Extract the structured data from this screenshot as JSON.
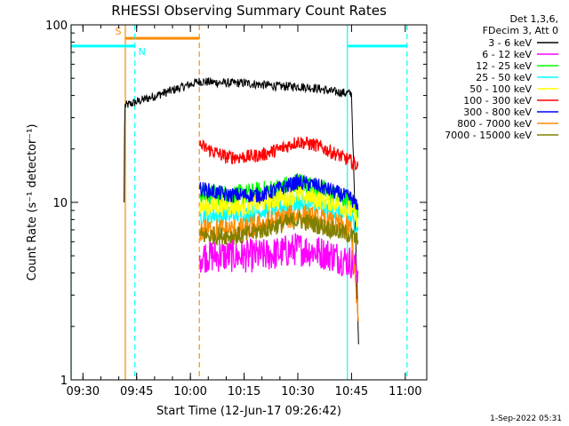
{
  "chart_data": {
    "type": "line",
    "title": "RHESSI Observing Summary Count Rates",
    "xlabel": "Start Time (12-Jun-17 09:26:42)",
    "ylabel": "Count Rate (s⁻¹ detector⁻¹)",
    "x_range": [
      "09:26:42",
      "11:06:00"
    ],
    "ylim": [
      1,
      100
    ],
    "yscale": "log",
    "x_ticks": [
      "09:30",
      "09:45",
      "10:00",
      "10:15",
      "10:30",
      "10:45",
      "11:00"
    ],
    "y_ticks": [
      "1",
      "10",
      "100"
    ],
    "legend_header": [
      "Det 1,3,6,",
      "FDecim 3, Att 0"
    ],
    "legend_position": "top-right, outside plot",
    "series": [
      {
        "name": "3 - 6 keV",
        "color": "#000000",
        "x": [
          "09:41:30",
          "09:41:40",
          "10:02:30",
          "10:10",
          "10:15",
          "10:20",
          "10:25",
          "10:30",
          "10:35",
          "10:40",
          "10:45",
          "10:47:00"
        ],
        "values": [
          10,
          35,
          48,
          47,
          47,
          46,
          45,
          45,
          44,
          42,
          41,
          1.5
        ]
      },
      {
        "name": "6 - 12 keV",
        "color": "#ff00ff",
        "x": [
          "10:02:30",
          "10:10",
          "10:15",
          "10:20",
          "10:25",
          "10:30",
          "10:35",
          "10:40",
          "10:45",
          "10:47:00"
        ],
        "values": [
          5,
          5,
          5,
          5,
          5.2,
          5.5,
          5.3,
          5,
          4.6,
          4
        ]
      },
      {
        "name": "12 - 25 keV",
        "color": "#00ff00",
        "x": [
          "10:02:30",
          "10:10",
          "10:15",
          "10:20",
          "10:25",
          "10:30",
          "10:35",
          "10:40",
          "10:45",
          "10:47:00"
        ],
        "values": [
          11,
          11,
          11,
          11.5,
          12,
          13,
          12,
          11,
          10,
          8
        ]
      },
      {
        "name": "25 - 50 keV",
        "color": "#00ffff",
        "x": [
          "10:02:30",
          "10:10",
          "10:15",
          "10:20",
          "10:25",
          "10:30",
          "10:35",
          "10:40",
          "10:45",
          "10:47:00"
        ],
        "values": [
          8.5,
          8.5,
          8.5,
          9,
          9.5,
          10,
          9.5,
          9,
          8,
          7
        ]
      },
      {
        "name": "50 - 100 keV",
        "color": "#ffff00",
        "x": [
          "10:02:30",
          "10:10",
          "10:15",
          "10:20",
          "10:25",
          "10:30",
          "10:35",
          "10:40",
          "10:45",
          "10:47:00"
        ],
        "values": [
          9.5,
          9.5,
          9.5,
          10,
          10.5,
          11,
          10.5,
          10,
          9,
          8
        ]
      },
      {
        "name": "100 - 300 keV",
        "color": "#ff0000",
        "x": [
          "10:02:30",
          "10:10",
          "10:15",
          "10:20",
          "10:25",
          "10:30",
          "10:35",
          "10:40",
          "10:45",
          "10:47:00"
        ],
        "values": [
          21,
          18,
          18,
          18.5,
          20,
          22,
          21,
          19,
          17,
          16
        ]
      },
      {
        "name": "300 - 800 keV",
        "color": "#0000ff",
        "x": [
          "10:02:30",
          "10:10",
          "10:15",
          "10:20",
          "10:25",
          "10:30",
          "10:35",
          "10:40",
          "10:45",
          "10:47:00"
        ],
        "values": [
          12,
          11,
          11,
          11,
          12,
          13,
          12.5,
          11.5,
          10.5,
          9
        ]
      },
      {
        "name": "800 - 7000 keV",
        "color": "#ff8c00",
        "x": [
          "10:02:30",
          "10:10",
          "10:15",
          "10:20",
          "10:25",
          "10:30",
          "10:35",
          "10:40",
          "10:45",
          "10:47:00"
        ],
        "values": [
          7,
          7,
          7,
          7.5,
          8,
          8.5,
          8,
          7.5,
          7,
          2
        ]
      },
      {
        "name": "7000 - 15000 keV",
        "color": "#808000",
        "x": [
          "10:02:30",
          "10:10",
          "10:15",
          "10:20",
          "10:25",
          "10:30",
          "10:35",
          "10:40",
          "10:45",
          "10:47:00"
        ],
        "values": [
          6.5,
          6.5,
          6.5,
          7,
          7.5,
          8,
          7.5,
          7,
          6.5,
          6
        ]
      }
    ],
    "flags": [
      {
        "label": "S",
        "color": "#ff8c00",
        "start": "09:41:50",
        "end": "10:02:30",
        "solid_at": "09:41:50",
        "dashed_at": "10:02:30"
      },
      {
        "label": "N",
        "color": "#00ffff",
        "start": "09:26:42",
        "end": "09:44:30",
        "solid_at": "09:26:42",
        "dashed_at": "09:44:30"
      },
      {
        "label": "",
        "color": "#00ffff",
        "start": "10:43:50",
        "end": "11:00:30",
        "solid_at": "10:43:50",
        "dashed_at": "11:00:30"
      }
    ],
    "grid": false
  },
  "timestamp": "1-Sep-2022 05:31"
}
